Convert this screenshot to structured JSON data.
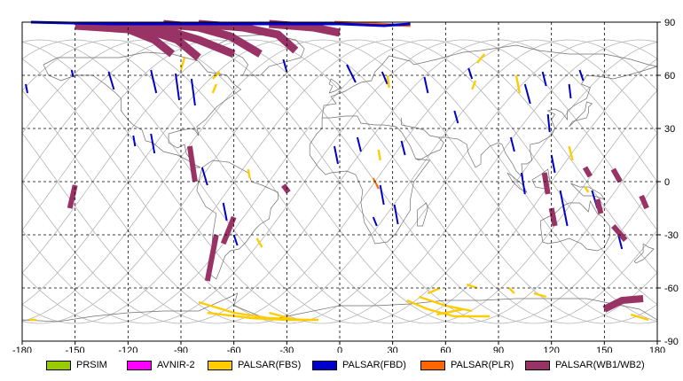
{
  "map": {
    "x_ticks": [
      "-180",
      "-150",
      "-120",
      "-90",
      "-60",
      "-30",
      "0",
      "30",
      "60",
      "90",
      "120",
      "150",
      "180"
    ],
    "y_ticks": [
      "90",
      "60",
      "30",
      "0",
      "-30",
      "-60",
      "-90"
    ],
    "extent": {
      "lon": [
        -180,
        180
      ],
      "lat": [
        -90,
        90
      ]
    },
    "grid": "dashed",
    "colors": {
      "PRSIM": "#99cc00",
      "AVNIR-2": "#ff00ff",
      "PALSAR(FBS)": "#ffcc00",
      "PALSAR(FBD)": "#0000cc",
      "PALSAR(PLR)": "#ff6600",
      "PALSAR(WB1/WB2)": "#993366"
    },
    "orbit_track_color": "#b4b4b4",
    "coast_color": "#6f6f6f"
  },
  "legend": {
    "items": [
      {
        "label": "PRSIM",
        "color": "#99cc00"
      },
      {
        "label": "AVNIR-2",
        "color": "#ff00ff"
      },
      {
        "label": "PALSAR(FBS)",
        "color": "#ffcc00"
      },
      {
        "label": "PALSAR(FBD)",
        "color": "#0000cc"
      },
      {
        "label": "PALSAR(PLR)",
        "color": "#ff6600"
      },
      {
        "label": "PALSAR(WB1/WB2)",
        "color": "#993366"
      }
    ]
  }
}
